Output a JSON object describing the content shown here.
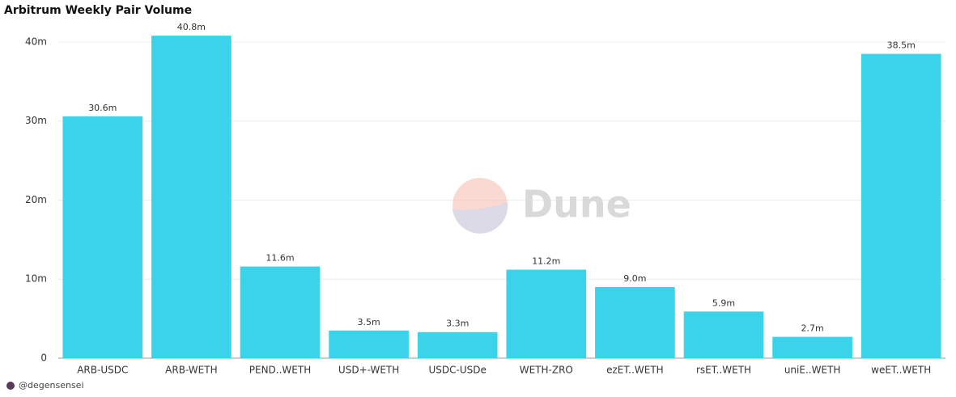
{
  "chart_data": {
    "type": "bar",
    "title": "Arbitrum Weekly Pair Volume",
    "categories": [
      "ARB-USDC",
      "ARB-WETH",
      "PEND..WETH",
      "USD+-WETH",
      "USDC-USDe",
      "WETH-ZRO",
      "ezET..WETH",
      "rsET..WETH",
      "uniE..WETH",
      "weET..WETH"
    ],
    "values": [
      30.6,
      40.8,
      11.6,
      3.5,
      3.3,
      11.2,
      9.0,
      5.9,
      2.7,
      38.5
    ],
    "value_labels": [
      "30.6m",
      "40.8m",
      "11.6m",
      "3.5m",
      "3.3m",
      "11.2m",
      "9.0m",
      "5.9m",
      "2.7m",
      "38.5m"
    ],
    "color": "#3bd3ea",
    "ylim": [
      0,
      42
    ],
    "yticks": [
      0,
      {
        "value": 10,
        "label": "10m"
      },
      {
        "value": 20,
        "label": "20m"
      },
      {
        "value": 30,
        "label": "30m"
      },
      {
        "value": 40,
        "label": "40m"
      }
    ],
    "grid": true,
    "watermark": "Dune",
    "footer": "@degensensei"
  }
}
